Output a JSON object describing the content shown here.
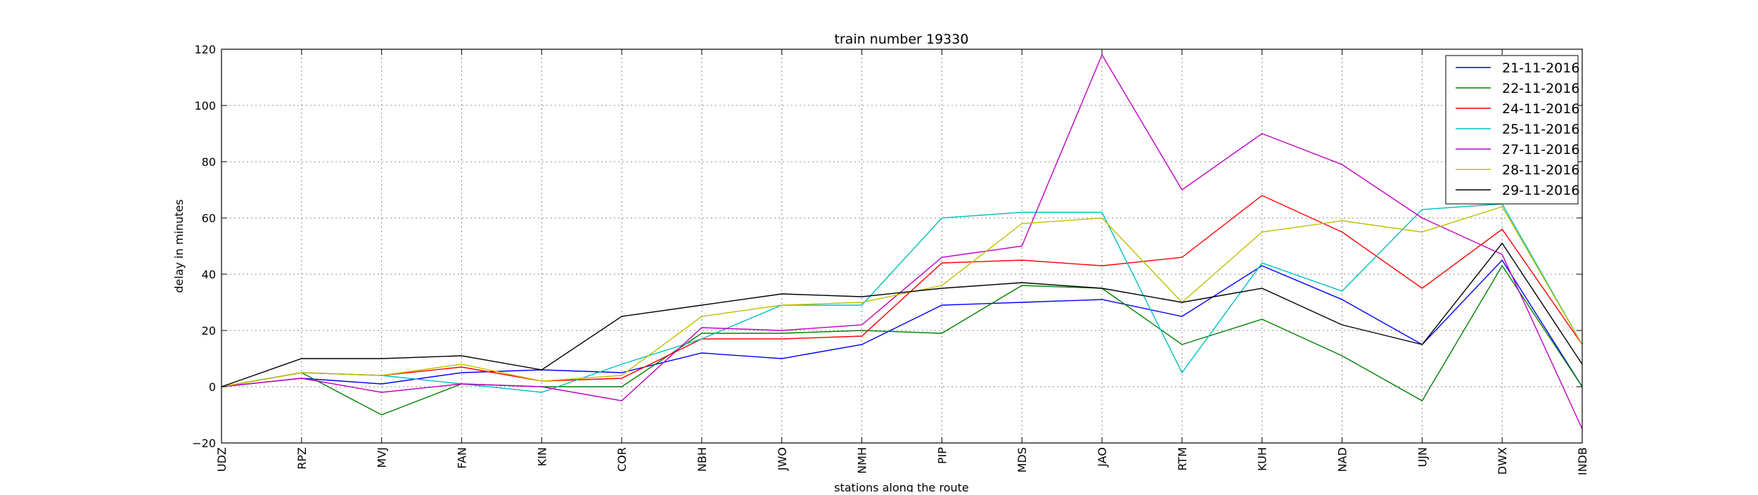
{
  "chart_data": {
    "type": "line",
    "title": "train number 19330",
    "xlabel": "stations along the route",
    "ylabel": "delay in minutes",
    "ylim": [
      -20,
      120
    ],
    "yticks": [
      -20,
      0,
      20,
      40,
      60,
      80,
      100,
      120
    ],
    "grid": true,
    "legend_position": "top-right",
    "categories": [
      "UDZ",
      "RPZ",
      "MVJ",
      "FAN",
      "KIN",
      "COR",
      "NBH",
      "JWO",
      "NMH",
      "PIP",
      "MDS",
      "JAO",
      "RTM",
      "KUH",
      "NAD",
      "UJN",
      "DWX",
      "INDB"
    ],
    "series": [
      {
        "name": "21-11-2016",
        "color": "#0000ff",
        "values": [
          0,
          3,
          1,
          5,
          6,
          5,
          12,
          10,
          15,
          29,
          30,
          31,
          25,
          43,
          31,
          15,
          45,
          0
        ]
      },
      {
        "name": "22-11-2016",
        "color": "#008000",
        "values": [
          0,
          5,
          -10,
          1,
          0,
          0,
          19,
          19,
          20,
          19,
          36,
          35,
          15,
          24,
          11,
          -5,
          43,
          0
        ]
      },
      {
        "name": "24-11-2016",
        "color": "#ff0000",
        "values": [
          0,
          5,
          4,
          7,
          2,
          3,
          17,
          17,
          18,
          44,
          45,
          43,
          46,
          68,
          55,
          35,
          56,
          15
        ]
      },
      {
        "name": "25-11-2016",
        "color": "#00bfbf",
        "values": [
          0,
          5,
          4,
          1,
          -2,
          8,
          17,
          29,
          29,
          60,
          62,
          62,
          5,
          44,
          34,
          63,
          65,
          15
        ]
      },
      {
        "name": "27-11-2016",
        "color": "#bf00bf",
        "values": [
          0,
          3,
          -2,
          1,
          0,
          -5,
          21,
          20,
          22,
          46,
          50,
          118,
          70,
          90,
          79,
          60,
          47,
          -15
        ]
      },
      {
        "name": "28-11-2016",
        "color": "#bfbf00",
        "values": [
          0,
          5,
          4,
          8,
          2,
          4,
          25,
          29,
          30,
          36,
          58,
          60,
          30,
          55,
          59,
          55,
          64,
          15
        ]
      },
      {
        "name": "29-11-2016",
        "color": "#000000",
        "values": [
          0,
          10,
          10,
          11,
          6,
          25,
          29,
          33,
          32,
          35,
          37,
          35,
          30,
          35,
          22,
          15,
          51,
          8
        ]
      }
    ]
  }
}
